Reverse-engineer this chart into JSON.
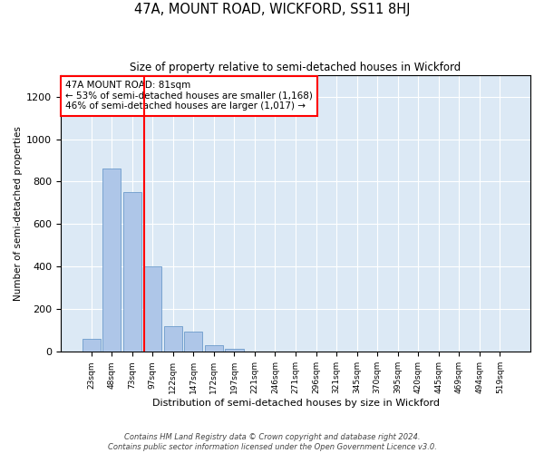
{
  "title": "47A, MOUNT ROAD, WICKFORD, SS11 8HJ",
  "subtitle": "Size of property relative to semi-detached houses in Wickford",
  "xlabel": "Distribution of semi-detached houses by size in Wickford",
  "ylabel": "Number of semi-detached properties",
  "categories": [
    "23sqm",
    "48sqm",
    "73sqm",
    "97sqm",
    "122sqm",
    "147sqm",
    "172sqm",
    "197sqm",
    "221sqm",
    "246sqm",
    "271sqm",
    "296sqm",
    "321sqm",
    "345sqm",
    "370sqm",
    "395sqm",
    "420sqm",
    "445sqm",
    "469sqm",
    "494sqm",
    "519sqm"
  ],
  "values": [
    60,
    860,
    750,
    400,
    120,
    95,
    30,
    15,
    0,
    0,
    0,
    0,
    0,
    0,
    0,
    0,
    0,
    0,
    0,
    0,
    0
  ],
  "bar_color": "#aec6e8",
  "bar_edge_color": "#5a8fc4",
  "background_color": "#dce9f5",
  "grid_color": "#ffffff",
  "annotation_text": "47A MOUNT ROAD: 81sqm\n← 53% of semi-detached houses are smaller (1,168)\n46% of semi-detached houses are larger (1,017) →",
  "red_line_x": 2.58,
  "ylim": [
    0,
    1300
  ],
  "yticks": [
    0,
    200,
    400,
    600,
    800,
    1000,
    1200
  ],
  "footer_line1": "Contains HM Land Registry data © Crown copyright and database right 2024.",
  "footer_line2": "Contains public sector information licensed under the Open Government Licence v3.0."
}
